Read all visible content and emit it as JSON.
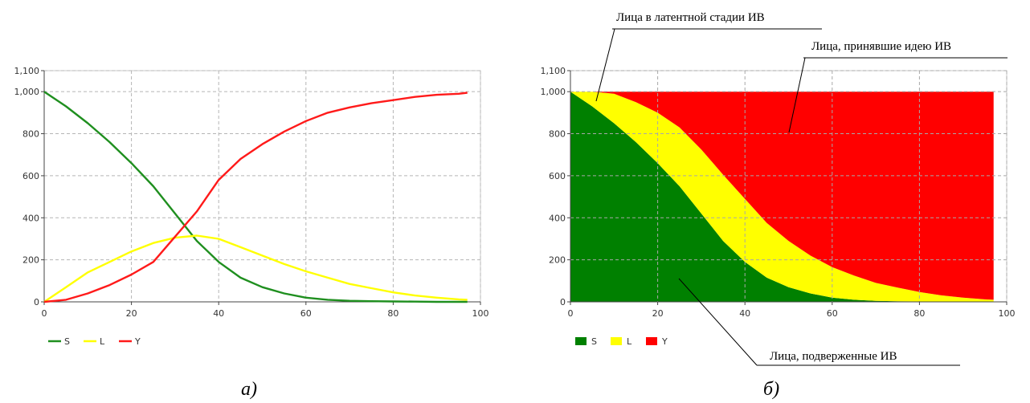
{
  "chart_data": [
    {
      "type": "line",
      "xlim": [
        0,
        100
      ],
      "ylim": [
        0,
        1100
      ],
      "x_ticks": [
        0,
        20,
        40,
        60,
        80,
        100
      ],
      "y_ticks": [
        0,
        200,
        400,
        600,
        800,
        1000,
        1100
      ],
      "x_tick_labels": [
        "0",
        "20",
        "40",
        "60",
        "80",
        "100"
      ],
      "y_tick_labels": [
        "0",
        "200",
        "400",
        "600",
        "800",
        "1,000",
        "1,100"
      ],
      "grid": true,
      "legend_position": "bottom-left",
      "x": [
        0,
        5,
        10,
        15,
        20,
        25,
        30,
        35,
        40,
        45,
        50,
        55,
        60,
        65,
        70,
        75,
        80,
        85,
        90,
        95,
        97
      ],
      "series": [
        {
          "name": "S",
          "color": "#1f8f1f",
          "values": [
            1000,
            930,
            850,
            760,
            660,
            550,
            420,
            290,
            190,
            115,
            70,
            40,
            20,
            10,
            5,
            3,
            2,
            1,
            0,
            0,
            0
          ]
        },
        {
          "name": "L",
          "color": "#ffff00",
          "values": [
            0,
            70,
            140,
            190,
            240,
            280,
            305,
            315,
            300,
            260,
            220,
            180,
            145,
            115,
            85,
            65,
            45,
            30,
            20,
            12,
            10
          ]
        },
        {
          "name": "Y",
          "color": "#ff1a1a",
          "values": [
            0,
            10,
            40,
            80,
            130,
            190,
            310,
            430,
            580,
            680,
            750,
            810,
            860,
            900,
            925,
            945,
            960,
            975,
            985,
            990,
            995
          ]
        }
      ]
    },
    {
      "type": "area",
      "stacked": true,
      "xlim": [
        0,
        100
      ],
      "ylim": [
        0,
        1100
      ],
      "x_ticks": [
        0,
        20,
        40,
        60,
        80,
        100
      ],
      "y_ticks": [
        0,
        200,
        400,
        600,
        800,
        1000,
        1100
      ],
      "x_tick_labels": [
        "0",
        "20",
        "40",
        "60",
        "80",
        "100"
      ],
      "y_tick_labels": [
        "0",
        "200",
        "400",
        "600",
        "800",
        "1,000",
        "1,100"
      ],
      "grid": true,
      "legend_position": "bottom-left",
      "x": [
        0,
        5,
        10,
        15,
        20,
        25,
        30,
        35,
        40,
        45,
        50,
        55,
        60,
        65,
        70,
        75,
        80,
        85,
        90,
        95,
        97
      ],
      "series": [
        {
          "name": "S",
          "color": "#008000",
          "values": [
            1000,
            930,
            850,
            760,
            660,
            550,
            420,
            290,
            190,
            115,
            70,
            40,
            20,
            10,
            5,
            3,
            2,
            1,
            0,
            0,
            0
          ]
        },
        {
          "name": "L",
          "color": "#ffff00",
          "values": [
            0,
            70,
            140,
            190,
            240,
            280,
            305,
            315,
            300,
            260,
            220,
            180,
            145,
            115,
            85,
            65,
            45,
            30,
            20,
            12,
            10
          ]
        },
        {
          "name": "Y",
          "color": "#ff0000",
          "values": [
            0,
            0,
            10,
            50,
            100,
            170,
            275,
            395,
            510,
            625,
            710,
            780,
            835,
            875,
            910,
            932,
            953,
            969,
            980,
            988,
            990
          ]
        }
      ],
      "annotations": [
        "Лица в латентной стадии ИВ",
        "Лица, принявшие идею ИВ",
        "Лица, подверженные ИВ"
      ]
    }
  ],
  "captions": {
    "left": "а)",
    "right": "б)"
  }
}
